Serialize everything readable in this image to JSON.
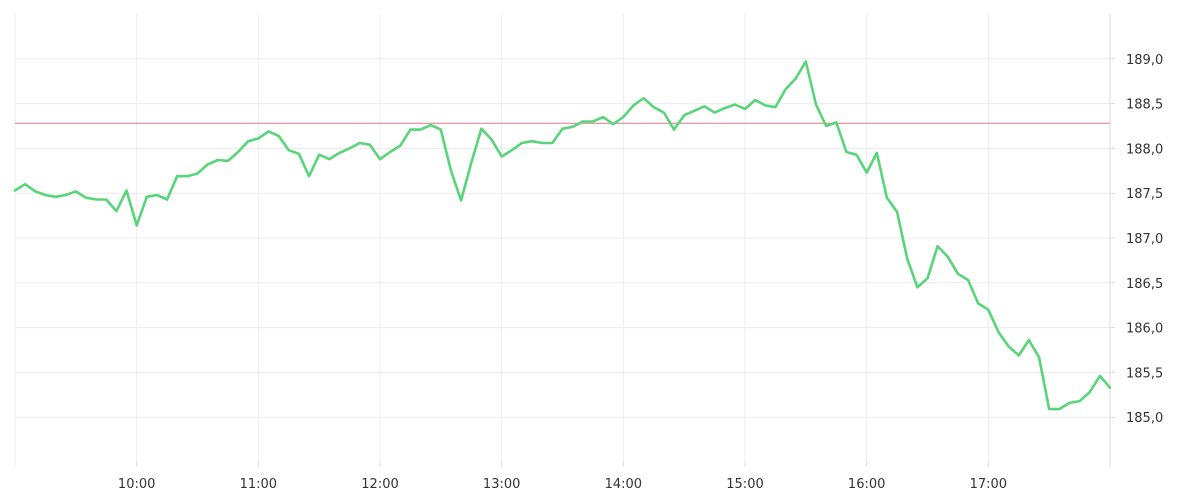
{
  "chart_data": {
    "type": "line",
    "grid": true,
    "line_color": "#58d57a",
    "reference_color": "#e07a86",
    "x_unit": "time",
    "xlim": [
      "09:00",
      "18:00"
    ],
    "ylim": [
      184.5,
      189.5
    ],
    "x_ticks": [
      {
        "t": "10:00",
        "label": "10:00"
      },
      {
        "t": "11:00",
        "label": "11:00"
      },
      {
        "t": "12:00",
        "label": "12:00"
      },
      {
        "t": "13:00",
        "label": "13:00"
      },
      {
        "t": "14:00",
        "label": "14:00"
      },
      {
        "t": "15:00",
        "label": "15:00"
      },
      {
        "t": "16:00",
        "label": "16:00"
      },
      {
        "t": "17:00",
        "label": "17:00"
      }
    ],
    "y_ticks": [
      {
        "v": 185.0,
        "label": "185,0"
      },
      {
        "v": 185.5,
        "label": "185,5"
      },
      {
        "v": 186.0,
        "label": "186,0"
      },
      {
        "v": 186.5,
        "label": "186,5"
      },
      {
        "v": 187.0,
        "label": "187,0"
      },
      {
        "v": 187.5,
        "label": "187,5"
      },
      {
        "v": 188.0,
        "label": "188,0"
      },
      {
        "v": 188.5,
        "label": "188,5"
      },
      {
        "v": 189.0,
        "label": "189,0"
      }
    ],
    "reference_line": 188.28,
    "series": [
      {
        "x": [
          "09:00",
          "09:05",
          "09:10",
          "09:15",
          "09:20",
          "09:25",
          "09:30",
          "09:35",
          "09:40",
          "09:45",
          "09:50",
          "09:55",
          "10:00",
          "10:05",
          "10:10",
          "10:15",
          "10:20",
          "10:25",
          "10:30",
          "10:35",
          "10:40",
          "10:45",
          "10:50",
          "10:55",
          "11:00",
          "11:05",
          "11:10",
          "11:15",
          "11:20",
          "11:25",
          "11:30",
          "11:35",
          "11:40",
          "11:45",
          "11:50",
          "11:55",
          "12:00",
          "12:05",
          "12:10",
          "12:15",
          "12:20",
          "12:25",
          "12:30",
          "12:35",
          "12:40",
          "12:45",
          "12:50",
          "12:55",
          "13:00",
          "13:05",
          "13:10",
          "13:15",
          "13:20",
          "13:25",
          "13:30",
          "13:35",
          "13:40",
          "13:45",
          "13:50",
          "13:55",
          "14:00",
          "14:05",
          "14:10",
          "14:15",
          "14:20",
          "14:25",
          "14:30",
          "14:35",
          "14:40",
          "14:45",
          "14:50",
          "14:55",
          "15:00",
          "15:05",
          "15:10",
          "15:15",
          "15:20",
          "15:25",
          "15:30",
          "15:35",
          "15:40",
          "15:45",
          "15:50",
          "15:55",
          "16:00",
          "16:05",
          "16:10",
          "16:15",
          "16:20",
          "16:25",
          "16:30",
          "16:35",
          "16:40",
          "16:45",
          "16:50",
          "16:55",
          "17:00",
          "17:05",
          "17:10",
          "17:15",
          "17:20",
          "17:25",
          "17:30",
          "17:35",
          "17:40",
          "17:45",
          "17:50",
          "17:55",
          "18:00"
        ],
        "values": [
          187.53,
          187.6,
          187.52,
          187.48,
          187.46,
          187.48,
          187.52,
          187.45,
          187.43,
          187.43,
          187.3,
          187.53,
          187.14,
          187.46,
          187.48,
          187.43,
          187.69,
          187.69,
          187.72,
          187.82,
          187.87,
          187.86,
          187.96,
          188.08,
          188.11,
          188.19,
          188.14,
          187.98,
          187.94,
          187.69,
          187.93,
          187.88,
          187.95,
          188.0,
          188.06,
          188.04,
          187.88,
          187.96,
          188.03,
          188.21,
          188.21,
          188.26,
          188.21,
          187.75,
          187.42,
          187.84,
          188.22,
          188.1,
          187.91,
          187.98,
          188.06,
          188.08,
          188.06,
          188.06,
          188.22,
          188.24,
          188.3,
          188.3,
          188.35,
          188.27,
          188.35,
          188.48,
          188.56,
          188.46,
          188.4,
          188.21,
          188.37,
          188.42,
          188.47,
          188.4,
          188.45,
          188.49,
          188.44,
          188.54,
          188.48,
          188.46,
          188.66,
          188.78,
          188.97,
          188.49,
          188.25,
          188.29,
          187.96,
          187.93,
          187.73,
          187.95,
          187.45,
          187.29,
          186.77,
          186.45,
          186.55,
          186.91,
          186.79,
          186.6,
          186.53,
          186.27,
          186.2,
          185.95,
          185.79,
          185.69,
          185.86,
          185.67,
          185.09,
          185.09,
          185.16,
          185.18,
          185.28,
          185.46,
          185.33
        ]
      }
    ]
  }
}
